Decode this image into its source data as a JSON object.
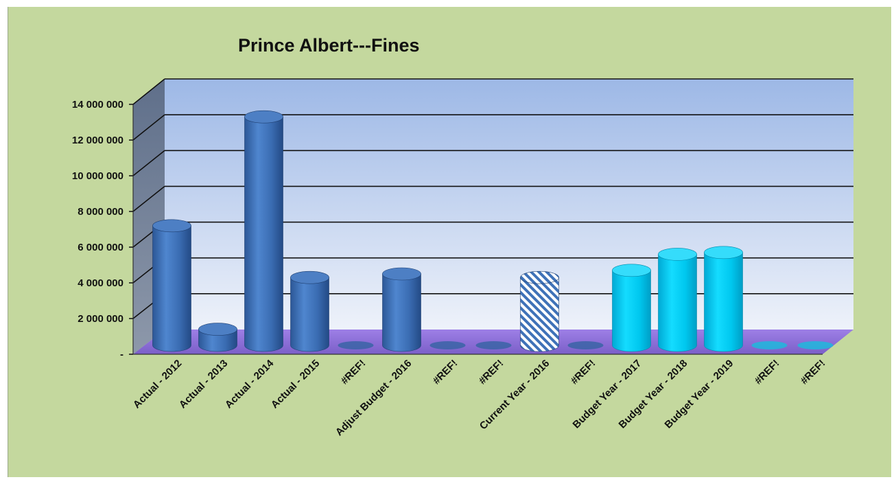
{
  "chart_data": {
    "type": "bar",
    "title": "Prince Albert---Fines",
    "xlabel": "",
    "ylabel": "",
    "ylim": [
      0,
      14000000
    ],
    "yticks": [
      {
        "value": 0,
        "label": "-"
      },
      {
        "value": 2000000,
        "label": "2 000 000"
      },
      {
        "value": 4000000,
        "label": "4 000 000"
      },
      {
        "value": 6000000,
        "label": "6 000 000"
      },
      {
        "value": 8000000,
        "label": "8 000 000"
      },
      {
        "value": 10000000,
        "label": "10 000 000"
      },
      {
        "value": 12000000,
        "label": "12 000 000"
      },
      {
        "value": 14000000,
        "label": "14 000 000"
      }
    ],
    "categories": [
      "Actual  - 2012",
      "Actual  - 2013",
      "Actual  - 2014",
      "Actual  - 2015",
      "#REF!",
      "Adjust Budget - 2016",
      "#REF!",
      "#REF!",
      "Current Year - 2016",
      "#REF!",
      "Budget Year  - 2017",
      "Budget Year  - 2018",
      "Budget Year  - 2019",
      "#REF!",
      "#REF!"
    ],
    "values": [
      6700000,
      900000,
      12800000,
      3800000,
      0,
      4000000,
      0,
      0,
      3800000,
      0,
      4200000,
      5100000,
      5200000,
      0,
      0
    ],
    "bar_styles": [
      "blue",
      "blue",
      "blue",
      "blue",
      "blue",
      "blue",
      "blue",
      "blue",
      "hatched",
      "blue",
      "cyan",
      "cyan",
      "cyan",
      "cyan",
      "cyan"
    ],
    "colors": {
      "background": "#c4d89e",
      "blue": "#3f72b8",
      "cyan": "#00ccf2",
      "hatch": "#3f72b8",
      "floor": "#8a6fd6",
      "wall_top": "#9db8e6",
      "wall_bottom": "#eef2fa",
      "side_wall": "#6d7e99"
    },
    "grid": true,
    "legend": "none"
  }
}
